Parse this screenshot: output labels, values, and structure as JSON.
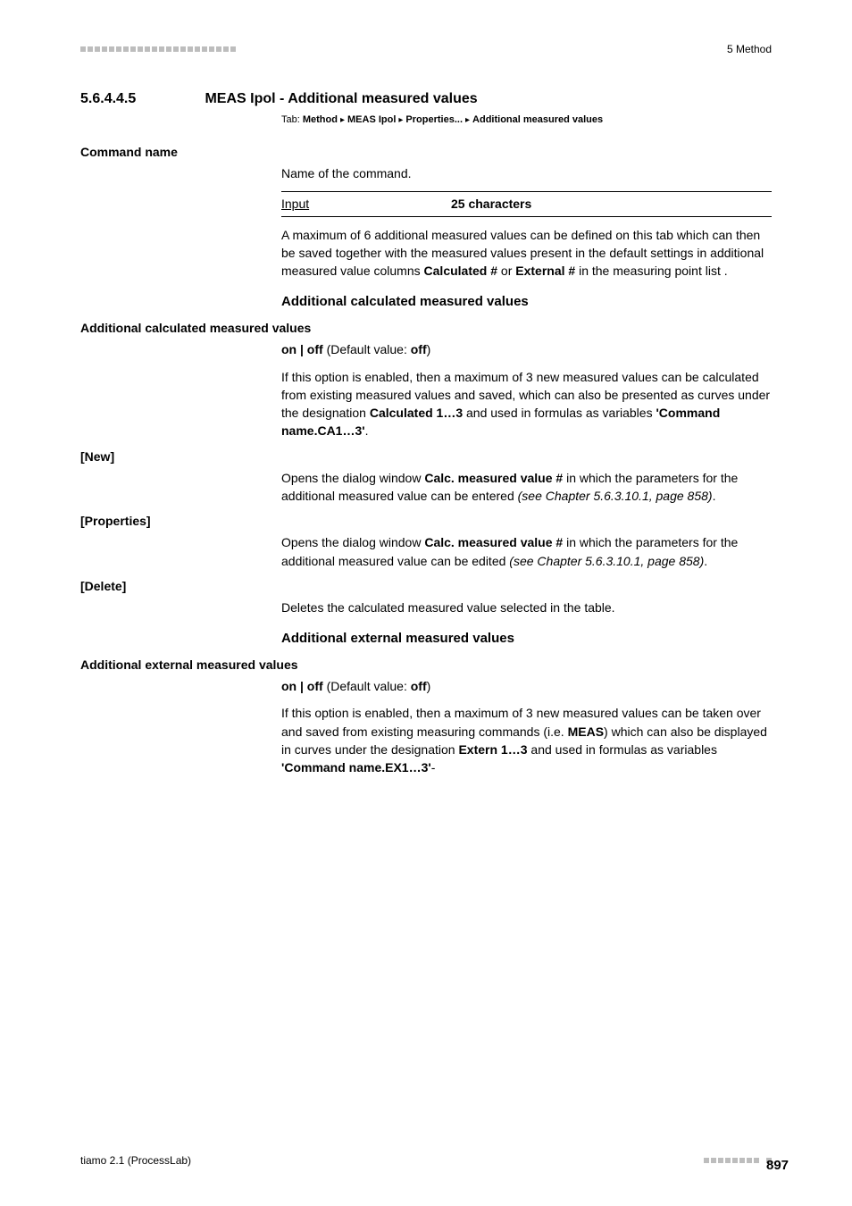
{
  "header": {
    "right": "5 Method"
  },
  "section": {
    "number": "5.6.4.4.5",
    "title": "MEAS Ipol - Additional measured values"
  },
  "tab": {
    "label": "Tab:",
    "path": [
      "Method",
      "MEAS Ipol",
      "Properties...",
      "Additional measured values"
    ]
  },
  "command_name": {
    "heading": "Command name",
    "desc": "Name of the command.",
    "input_label": "Input",
    "input_value": "25 characters",
    "para": "A maximum of 6 additional measured values can be defined on this tab which can then be saved together with the measured values present in the default settings in additional measured value columns ",
    "para_b1": "Calculated #",
    "para_mid": " or ",
    "para_b2": "External #",
    "para_end": " in the measuring point list ."
  },
  "calc": {
    "subhead": "Additional calculated measured values",
    "heading": "Additional calculated measured values",
    "toggle_pre": "on | off",
    "toggle_mid": " (Default value: ",
    "toggle_val": "off",
    "toggle_end": ")",
    "para1_a": "If this option is enabled, then a maximum of 3 new measured values can be calculated from existing measured values and saved, which can also be presented as curves under the designation ",
    "para1_b1": "Calculated 1…3",
    "para1_b": " and used in formulas as variables ",
    "para1_q": "'Command name.CA1…3'",
    "para1_end": "."
  },
  "new_btn": {
    "heading": "[New]",
    "a": "Opens the dialog window ",
    "b": "Calc. measured value #",
    "c": " in which the parameters for the additional measured value can be entered ",
    "it": "(see Chapter 5.6.3.10.1, page 858)",
    "end": "."
  },
  "props_btn": {
    "heading": "[Properties]",
    "a": "Opens the dialog window ",
    "b": "Calc. measured value #",
    "c": " in which the parameters for the additional measured value can be edited ",
    "it": "(see Chapter 5.6.3.10.1, page 858)",
    "end": "."
  },
  "del_btn": {
    "heading": "[Delete]",
    "a": "Deletes the calculated measured value selected in the table."
  },
  "ext": {
    "subhead": "Additional external measured values",
    "heading": "Additional external measured values",
    "toggle_pre": "on | off",
    "toggle_mid": " (Default value: ",
    "toggle_val": "off",
    "toggle_end": ")",
    "a": "If this option is enabled, then a maximum of 3 new measured values can be taken over and saved from existing measuring commands (i.e. ",
    "b1": "MEAS",
    "b": ") which can also be displayed in curves under the designation ",
    "b2": "Extern 1…3",
    "c": " and used in formulas as variables ",
    "q": "'Command name.EX1…3'",
    "end": "-"
  },
  "footer": {
    "left": "tiamo 2.1 (ProcessLab)",
    "page": "897"
  }
}
